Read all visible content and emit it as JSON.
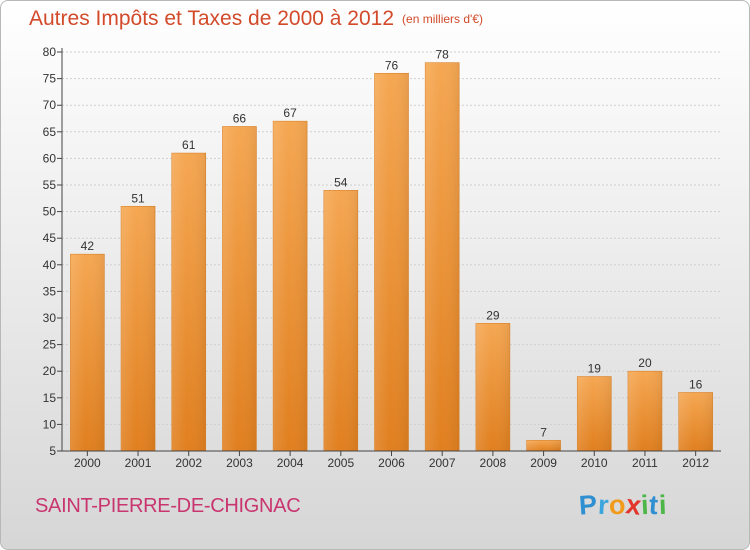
{
  "title": "Autres Impôts et Taxes de 2000 à 2012",
  "unit_note": "(en milliers d'€)",
  "place": "SAINT-PIERRE-DE-CHIGNAC",
  "logo": {
    "letters": [
      "P",
      "r",
      "o",
      "x",
      "i",
      "t",
      "i"
    ],
    "colors": [
      "#2f8fd1",
      "#3aa6dd",
      "#f19a1b",
      "#e2352b",
      "#4cb648",
      "#2f8fd1",
      "#4cb648"
    ]
  },
  "colors": {
    "bar_light": "#f5a752",
    "bar_dark": "#e07f1f",
    "title": "#d24a2a",
    "place": "#c9356f"
  },
  "chart_data": {
    "type": "bar",
    "categories": [
      "2000",
      "2001",
      "2002",
      "2003",
      "2004",
      "2005",
      "2006",
      "2007",
      "2008",
      "2009",
      "2010",
      "2011",
      "2012"
    ],
    "values": [
      42,
      51,
      61,
      66,
      67,
      54,
      76,
      78,
      29,
      7,
      19,
      20,
      16
    ],
    "ylim": [
      5,
      80
    ],
    "yticks": [
      5,
      10,
      15,
      20,
      25,
      30,
      35,
      40,
      45,
      50,
      55,
      60,
      65,
      70,
      75,
      80
    ],
    "grid": true,
    "data_labels": true
  }
}
